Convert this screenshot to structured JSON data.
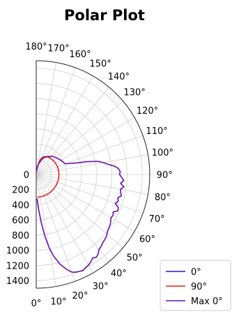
{
  "chart_data": {
    "type": "line",
    "projection": "polar-half",
    "title": "Polar Plot",
    "theta_ticks": [
      "0°",
      "10°",
      "20°",
      "30°",
      "40°",
      "50°",
      "60°",
      "70°",
      "80°",
      "90°",
      "100°",
      "110°",
      "120°",
      "130°",
      "140°",
      "150°",
      "160°",
      "170°",
      "180°"
    ],
    "r_ticks": [
      "0",
      "200",
      "400",
      "600",
      "800",
      "1000",
      "1200",
      "1400"
    ],
    "rlim": [
      0,
      1500
    ],
    "grid": true,
    "legend_position": "bottom-right",
    "series": [
      {
        "name": "0°",
        "color": "#1f1fbf",
        "points": [
          [
            0,
            0
          ],
          [
            180,
            0
          ]
        ]
      },
      {
        "name": "90°",
        "color": "#e02020",
        "points": [
          [
            172,
            90
          ],
          [
            170,
            120
          ],
          [
            168,
            150
          ],
          [
            166,
            180
          ],
          [
            164,
            210
          ],
          [
            160,
            240
          ],
          [
            155,
            260
          ],
          [
            150,
            270
          ],
          [
            140,
            285
          ],
          [
            130,
            290
          ],
          [
            120,
            295
          ],
          [
            110,
            300
          ],
          [
            100,
            300
          ],
          [
            95,
            300
          ],
          [
            90,
            300
          ],
          [
            85,
            300
          ],
          [
            80,
            300
          ],
          [
            75,
            300
          ],
          [
            70,
            300
          ],
          [
            60,
            300
          ],
          [
            50,
            300
          ],
          [
            40,
            300
          ],
          [
            30,
            300
          ],
          [
            20,
            300
          ],
          [
            10,
            300
          ],
          [
            5,
            300
          ],
          [
            3,
            300
          ]
        ]
      },
      {
        "name": "Max 0°",
        "color": "#6a0dad",
        "points": [
          [
            176,
            40
          ],
          [
            172,
            80
          ],
          [
            168,
            140
          ],
          [
            162,
            190
          ],
          [
            156,
            240
          ],
          [
            150,
            270
          ],
          [
            140,
            315
          ],
          [
            130,
            345
          ],
          [
            120,
            375
          ],
          [
            110,
            410
          ],
          [
            106,
            550
          ],
          [
            104,
            700
          ],
          [
            102,
            830
          ],
          [
            100,
            900
          ],
          [
            98,
            960
          ],
          [
            96,
            1040
          ],
          [
            94,
            1090
          ],
          [
            92,
            1110
          ],
          [
            90,
            1100
          ],
          [
            88,
            1130
          ],
          [
            86,
            1160
          ],
          [
            84,
            1120
          ],
          [
            82,
            1170
          ],
          [
            80,
            1130
          ],
          [
            78,
            1140
          ],
          [
            76,
            1160
          ],
          [
            74,
            1120
          ],
          [
            72,
            1140
          ],
          [
            70,
            1110
          ],
          [
            68,
            1170
          ],
          [
            66,
            1180
          ],
          [
            64,
            1130
          ],
          [
            62,
            1150
          ],
          [
            60,
            1140
          ],
          [
            58,
            1160
          ],
          [
            56,
            1180
          ],
          [
            54,
            1190
          ],
          [
            52,
            1200
          ],
          [
            50,
            1220
          ],
          [
            48,
            1240
          ],
          [
            46,
            1250
          ],
          [
            44,
            1260
          ],
          [
            42,
            1280
          ],
          [
            40,
            1290
          ],
          [
            38,
            1330
          ],
          [
            36,
            1350
          ],
          [
            34,
            1330
          ],
          [
            32,
            1360
          ],
          [
            30,
            1380
          ],
          [
            28,
            1390
          ],
          [
            26,
            1410
          ],
          [
            24,
            1400
          ],
          [
            22,
            1390
          ],
          [
            20,
            1370
          ],
          [
            18,
            1320
          ],
          [
            15,
            1230
          ],
          [
            12,
            1100
          ],
          [
            10,
            980
          ],
          [
            8,
            820
          ],
          [
            6,
            640
          ],
          [
            4,
            470
          ],
          [
            2,
            320
          ]
        ]
      }
    ]
  }
}
